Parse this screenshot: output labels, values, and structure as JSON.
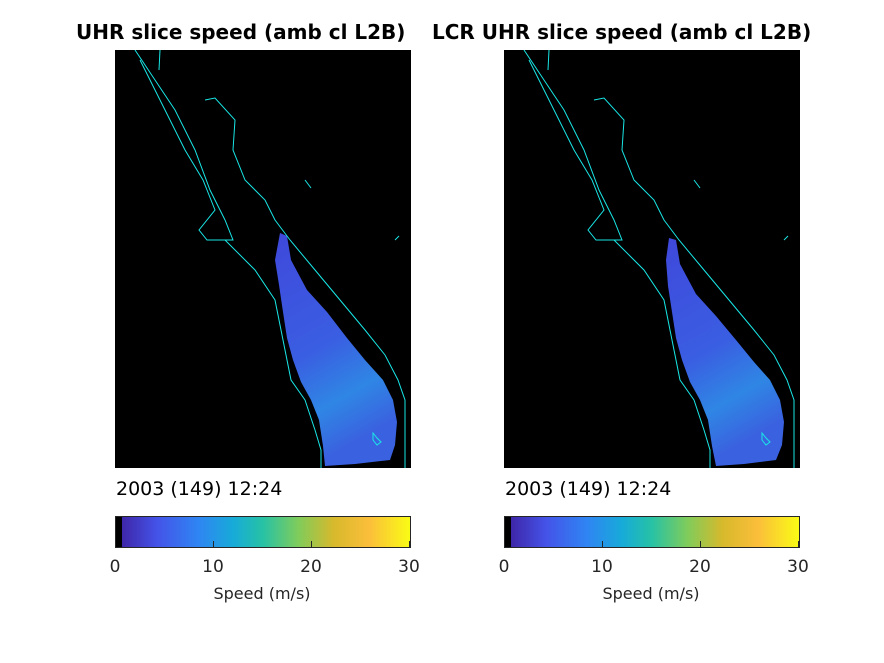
{
  "panels": [
    {
      "title": "UHR slice speed (amb cl L2B)",
      "date": "2003 (149) 12:24",
      "colorbar": {
        "ticks": [
          "0",
          "10",
          "20",
          "30"
        ],
        "label": "Speed (m/s)",
        "range": [
          0,
          30
        ]
      }
    },
    {
      "title": "LCR UHR slice speed (amb cl L2B)",
      "date": "2003 (149) 12:24",
      "colorbar": {
        "ticks": [
          "0",
          "10",
          "20",
          "30"
        ],
        "label": "Speed (m/s)",
        "range": [
          0,
          30
        ]
      }
    }
  ],
  "colors": {
    "coastline": "#19e6e6",
    "background": "#000000",
    "field_low": "#3d46d9",
    "field_mid": "#2f8ce0",
    "colormap": [
      "#000000",
      "#3e26a8",
      "#4453e8",
      "#2f85f3",
      "#17abd8",
      "#27c2a5",
      "#7fcc5b",
      "#d7b92c",
      "#fbbe3b",
      "#f9fb15"
    ]
  }
}
